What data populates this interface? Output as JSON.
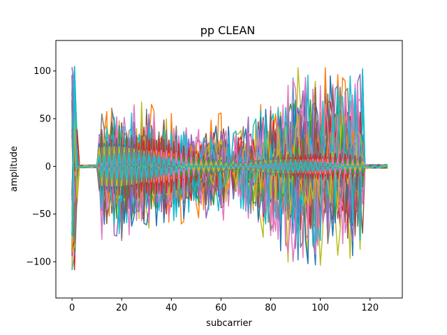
{
  "chart_data": {
    "type": "line",
    "title": "pp CLEAN",
    "xlabel": "subcarrier",
    "ylabel": "amplitude",
    "xlim": [
      -6.5,
      133
    ],
    "ylim": [
      -138,
      132
    ],
    "xticks": [
      0,
      20,
      40,
      60,
      80,
      100,
      120
    ],
    "yticks": [
      -100,
      -50,
      0,
      50,
      100
    ],
    "xtick_labels": [
      "0",
      "20",
      "40",
      "60",
      "80",
      "100",
      "120"
    ],
    "ytick_labels": [
      "−100",
      "−50",
      "0",
      "50",
      "100"
    ],
    "grid": false,
    "legend": "none",
    "num_series": 60,
    "series_palette": [
      "#1f77b4",
      "#ff7f0e",
      "#2ca02c",
      "#d62728",
      "#9467bd",
      "#8c564b",
      "#e377c2",
      "#7f7f7f",
      "#bcbd22",
      "#17becf"
    ],
    "envelope": {
      "x": [
        0,
        1,
        2,
        3,
        10,
        11,
        12,
        15,
        20,
        25,
        30,
        35,
        40,
        45,
        50,
        55,
        60,
        63,
        64,
        65,
        70,
        80,
        90,
        92,
        100,
        110,
        115,
        117,
        118,
        120,
        127
      ],
      "upper": [
        110,
        112,
        40,
        2,
        2,
        35,
        70,
        65,
        60,
        68,
        75,
        65,
        60,
        45,
        45,
        50,
        62,
        50,
        5,
        40,
        55,
        75,
        110,
        120,
        112,
        105,
        110,
        118,
        8,
        8,
        8
      ],
      "lower": [
        -125,
        -123,
        -95,
        -2,
        -2,
        -35,
        -80,
        -80,
        -85,
        -80,
        -80,
        -75,
        -75,
        -65,
        -60,
        -60,
        -60,
        -55,
        -5,
        -40,
        -65,
        -80,
        -110,
        -120,
        -105,
        -100,
        -100,
        -103,
        -8,
        -8,
        -8
      ]
    },
    "clean_band": {
      "x": [
        11,
        20,
        30,
        40,
        50,
        60,
        64,
        70,
        80,
        90,
        100,
        110,
        117
      ],
      "amp": [
        30,
        33,
        35,
        30,
        18,
        10,
        3,
        5,
        10,
        14,
        15,
        15,
        14
      ]
    }
  }
}
